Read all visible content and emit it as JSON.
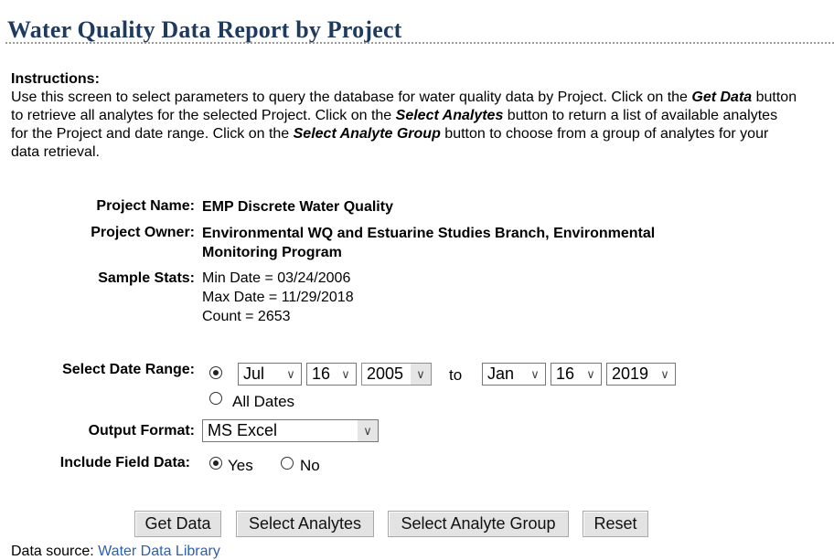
{
  "page_title": "Water Quality Data Report by Project",
  "instructions": {
    "heading": "Instructions:",
    "t1": "Use this screen to select parameters to query the database for water quality data by Project. Click on the ",
    "get_data": "Get Data",
    "t2": " button to retrieve all analytes for the selected Project. Click on the ",
    "select_analytes": "Select Analytes",
    "t3": " button to return a list of available analytes for the Project and date range. Click on the ",
    "select_analyte_group": "Select Analyte Group",
    "t4": " button to choose from a group of analytes for your data retrieval."
  },
  "project": {
    "name_label": "Project Name:",
    "name": "EMP Discrete Water Quality",
    "owner_label": "Project Owner:",
    "owner": "Environmental WQ and Estuarine Studies Branch, Environmental Monitoring Program",
    "stats_label": "Sample Stats:",
    "min_date": "Min Date = 03/24/2006",
    "max_date": "Max Date = 11/29/2018",
    "count": "Count = 2653"
  },
  "date_range": {
    "label": "Select Date Range:",
    "from_month": "Jul",
    "from_day": "16",
    "from_year": "2005",
    "to_text": "to",
    "to_month": "Jan",
    "to_day": "16",
    "to_year": "2019",
    "all_dates_label": "All Dates",
    "selected": "range"
  },
  "output_format": {
    "label": "Output Format:",
    "value": "MS Excel"
  },
  "field_data": {
    "label": "Include Field Data:",
    "yes_label": "Yes",
    "no_label": "No",
    "selected": "Yes"
  },
  "buttons": {
    "get_data": "Get Data",
    "select_analytes": "Select Analytes",
    "select_analyte_group": "Select Analyte Group",
    "reset": "Reset"
  },
  "footer": {
    "prefix": "Data source: ",
    "link_text": "Water Data Library"
  },
  "icons": {
    "dropdown": "chevron-down-icon",
    "dropdown_glyph": "∨"
  }
}
